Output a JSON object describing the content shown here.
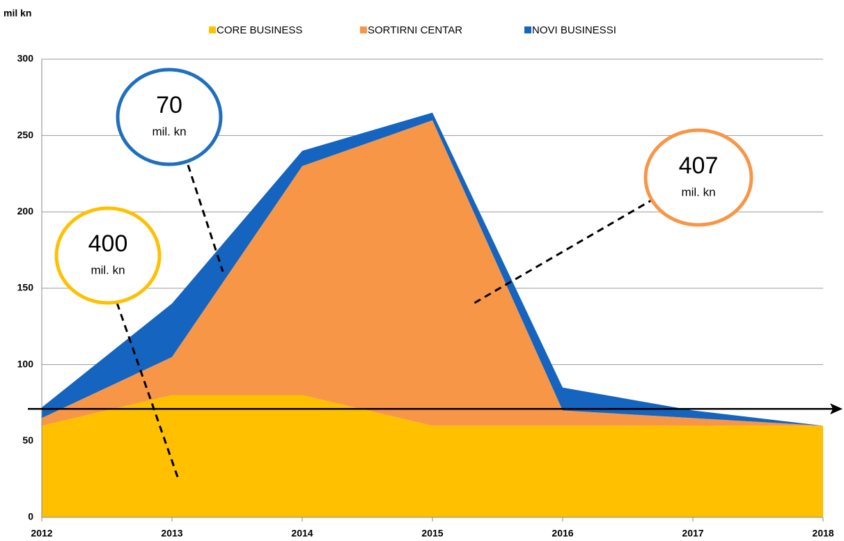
{
  "chart_data": {
    "type": "stacked_area",
    "unit_label": "mil kn",
    "categories": [
      "2012",
      "2013",
      "2014",
      "2015",
      "2016",
      "2017",
      "2018"
    ],
    "series": [
      {
        "name": "CORE BUSINESS",
        "color": "#ffc000",
        "values": [
          60,
          80,
          80,
          60,
          60,
          60,
          60
        ]
      },
      {
        "name": "SORTIRNI CENTAR",
        "color": "#f79646",
        "values": [
          5,
          25,
          150,
          200,
          10,
          5,
          0
        ]
      },
      {
        "name": "NOVI BUSINESSI",
        "color": "#1464c0",
        "values": [
          7,
          35,
          10,
          5,
          15,
          5,
          0
        ]
      }
    ],
    "ylim": [
      0,
      300
    ],
    "yticks": [
      0,
      50,
      100,
      150,
      200,
      250,
      300
    ],
    "grid": true,
    "reference_line": 71,
    "annotations": [
      {
        "value": "70",
        "unit": "mil. kn",
        "color": "#1f6fc0"
      },
      {
        "value": "400",
        "unit": "mil. kn",
        "color": "#ffc000"
      },
      {
        "value": "407",
        "unit": "mil. kn",
        "color": "#f79646"
      }
    ]
  }
}
